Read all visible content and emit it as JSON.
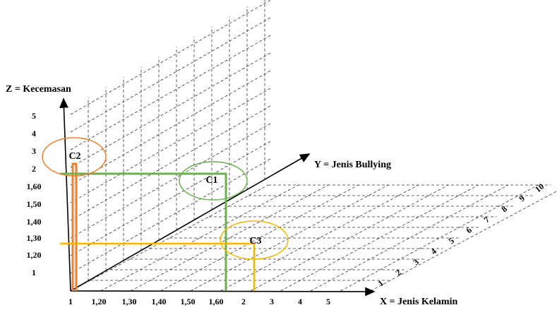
{
  "axes": {
    "z": {
      "label": "Z = Kecemasan",
      "ticks": [
        "5",
        "4",
        "3",
        "2",
        "1,60",
        "1,50",
        "1,40",
        "1,30",
        "1,20",
        "1"
      ]
    },
    "y": {
      "label": "Y = Jenis Bullying",
      "ticks": [
        "1",
        "2",
        "3",
        "4",
        "5",
        "6",
        "7",
        "8",
        "9",
        "10"
      ]
    },
    "x": {
      "label": "X = Jenis Kelamin",
      "ticks": [
        "1",
        "1,20",
        "1,30",
        "1,40",
        "1,50",
        "1,60",
        "2",
        "3",
        "4",
        "5"
      ]
    }
  },
  "clusters": [
    {
      "label": "C1"
    },
    {
      "label": "C2"
    },
    {
      "label": "C3"
    }
  ]
}
